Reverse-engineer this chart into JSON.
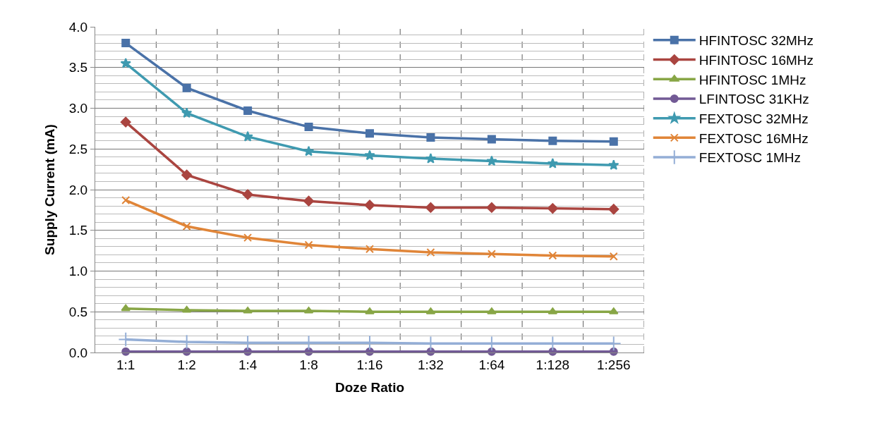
{
  "chart_data": {
    "type": "line",
    "xlabel": "Doze Ratio",
    "ylabel": "Supply Current (mA)",
    "categories": [
      "1:1",
      "1:2",
      "1:4",
      "1:8",
      "1:16",
      "1:32",
      "1:64",
      "1:128",
      "1:256"
    ],
    "series": [
      {
        "name": "HFINTOSC 32MHz",
        "color": "#4a72a8",
        "marker": "square",
        "values": [
          3.8,
          3.25,
          2.97,
          2.77,
          2.69,
          2.64,
          2.62,
          2.6,
          2.59
        ]
      },
      {
        "name": "HFINTOSC 16MHz",
        "color": "#aa4540",
        "marker": "diamond",
        "values": [
          2.83,
          2.18,
          1.94,
          1.86,
          1.81,
          1.78,
          1.78,
          1.77,
          1.76
        ]
      },
      {
        "name": "HFINTOSC 1MHz",
        "color": "#88a646",
        "marker": "triangle",
        "values": [
          0.54,
          0.52,
          0.51,
          0.51,
          0.5,
          0.5,
          0.5,
          0.5,
          0.5
        ]
      },
      {
        "name": "LFINTOSC 31KHz",
        "color": "#725a95",
        "marker": "circle",
        "values": [
          0.01,
          0.01,
          0.01,
          0.01,
          0.01,
          0.01,
          0.01,
          0.01,
          0.01
        ]
      },
      {
        "name": "FEXTOSC 32MHz",
        "color": "#3f9ab0",
        "marker": "star",
        "values": [
          3.55,
          2.94,
          2.65,
          2.47,
          2.42,
          2.38,
          2.35,
          2.32,
          2.3
        ]
      },
      {
        "name": "FEXTOSC 16MHz",
        "color": "#e08538",
        "marker": "x",
        "values": [
          1.87,
          1.55,
          1.41,
          1.32,
          1.27,
          1.23,
          1.21,
          1.19,
          1.18
        ]
      },
      {
        "name": "FEXTOSC 1MHz",
        "color": "#94aed6",
        "marker": "cross",
        "values": [
          0.16,
          0.13,
          0.12,
          0.12,
          0.12,
          0.11,
          0.11,
          0.11,
          0.11
        ]
      }
    ],
    "ylim": [
      0,
      4.0
    ],
    "yticks": [
      {
        "value": 0,
        "label": "0.0"
      },
      {
        "value": 0.5,
        "label": "0.5"
      },
      {
        "value": 1,
        "label": "1.0"
      },
      {
        "value": 1.5,
        "label": "1.5"
      },
      {
        "value": 2,
        "label": "2.0"
      },
      {
        "value": 2.5,
        "label": "2.5"
      },
      {
        "value": 3,
        "label": "3.0"
      },
      {
        "value": 3.5,
        "label": "3.5"
      },
      {
        "value": 4,
        "label": "4.0"
      }
    ],
    "grid": true,
    "legend": "right",
    "line_style": "solid"
  }
}
